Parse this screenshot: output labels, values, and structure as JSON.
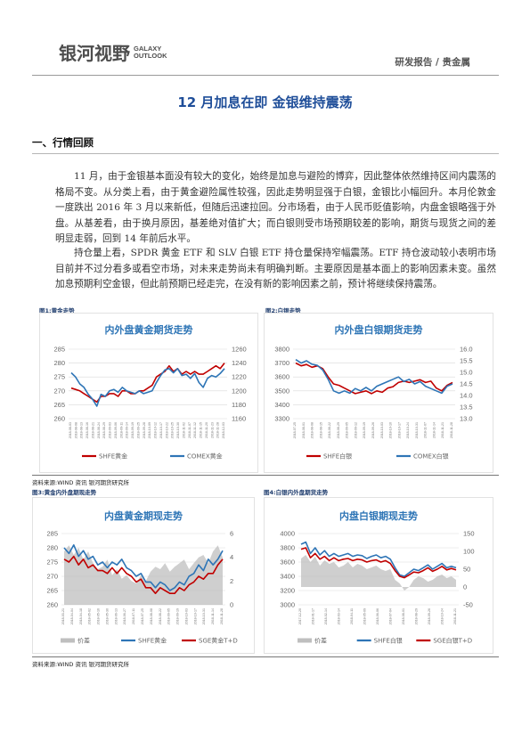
{
  "header": {
    "logo_cn": "银河视野",
    "logo_en_line1": "GALAXY",
    "logo_en_line2": "OUTLOOK",
    "category": "研发报告 / 贵金属"
  },
  "title": "12 月加息在即 金银维持震荡",
  "section": "一、行情回顾",
  "paragraphs": [
    "11 月，由于金银基本面没有较大的变化，始终是加息与避险的博弈，因此整体依然维持区间内震荡的格局不变。从分类上看，由于黄金避险属性较强，因此走势明显强于白银，金银比小幅回升。本月伦敦金一度跌出 2016 年 3 月以来新低，但随后迅速拉回。分市场看，由于人民币贬值影响，内盘金银略强于外盘。从基差看，由于换月原因，基差绝对值扩大；而白银则受市场预期较差的影响，期货与现货之间的差明显走弱，回到 14 年前后水平。",
    "持仓量上看，SPDR 黄金 ETF 和 SLV 白银 ETF 持仓量保持窄幅震荡。ETF 持仓波动较小表明市场目前并不过分看多或看空市场，对未来走势尚未有明确判断。主要原因是基本面上的影响因素未变。虽然加息预期利空金银，但此前预期已经走完，在没有新的影响因素之前，预计将继续保持震荡。"
  ],
  "source_text": "资料来源:WIND 资讯   银河期货研究所",
  "figures": [
    {
      "caption": "图1:黄金走势",
      "chart_data": {
        "type": "line",
        "title": "内外盘黄金期货走势",
        "y_left": {
          "ticks": [
            "285",
            "280",
            "275",
            "270",
            "265",
            "260"
          ],
          "lim": [
            260,
            285
          ]
        },
        "y_right": {
          "ticks": [
            "1260",
            "1240",
            "1220",
            "1200",
            "1180",
            "1160"
          ],
          "lim": [
            1160,
            1260
          ]
        },
        "x_ticks": [
          "2018-08-03",
          "2018-08-08",
          "2018-08-13",
          "2018-08-16",
          "2018-08-21",
          "2018-08-24",
          "2018-08-29",
          "2018-09-03",
          "2018-09-06",
          "2018-09-11",
          "2018-09-14",
          "2018-09-19",
          "2018-09-25",
          "2018-09-28",
          "2018-10-09",
          "2018-10-12",
          "2018-10-17",
          "2018-10-22",
          "2018-10-25",
          "2018-10-30",
          "2018-11-02",
          "2018-11-07",
          "2018-11-12",
          "2018-11-15",
          "2018-11-20",
          "2018-11-23",
          "2018-11-28",
          "2018-12-03"
        ],
        "series": [
          {
            "name": "SHFE黄金",
            "color": "#c00000",
            "axis": "left",
            "values": [
              271,
              270.5,
              270,
              269,
              268,
              267,
              266,
              268,
              268,
              269,
              269,
              268,
              270,
              270,
              269,
              269,
              270,
              270,
              271,
              272,
              275,
              276,
              277,
              279,
              277,
              278,
              276,
              277,
              276,
              277,
              276,
              276,
              277,
              278,
              279,
              278,
              280
            ]
          },
          {
            "name": "COMEX黄金",
            "color": "#2e75b6",
            "axis": "right",
            "values": [
              1226,
              1220,
              1210,
              1205,
              1195,
              1188,
              1178,
              1195,
              1192,
              1200,
              1202,
              1198,
              1205,
              1200,
              1198,
              1196,
              1200,
              1196,
              1198,
              1200,
              1212,
              1222,
              1230,
              1232,
              1226,
              1232,
              1222,
              1224,
              1218,
              1225,
              1212,
              1205,
              1218,
              1222,
              1220,
              1225,
              1232
            ]
          }
        ]
      }
    },
    {
      "caption": "图2:白银走势",
      "chart_data": {
        "type": "line",
        "title": "内外盘白银期货走势",
        "y_left": {
          "ticks": [
            "3800",
            "3700",
            "3600",
            "3500",
            "3400",
            "3300"
          ],
          "lim": [
            3300,
            3800
          ]
        },
        "y_right": {
          "ticks": [
            "16.0",
            "15.5",
            "15.0",
            "14.5",
            "14.0",
            "13.5",
            "13.0"
          ],
          "lim": [
            13.0,
            16.0
          ]
        },
        "x_ticks": [
          "2018-07-25",
          "2018-08-01",
          "2018-08-08",
          "2018-08-15",
          "2018-08-22",
          "2018-08-29",
          "2018-09-05",
          "2018-09-12",
          "2018-09-19",
          "2018-09-26",
          "2018-10-03",
          "2018-10-10",
          "2018-10-17",
          "2018-10-24",
          "2018-10-31",
          "2018-11-07",
          "2018-11-14",
          "2018-11-21",
          "2018-11-28"
        ],
        "series": [
          {
            "name": "SHFE白银",
            "color": "#c00000",
            "axis": "left",
            "values": [
              3700,
              3680,
              3690,
              3670,
              3680,
              3660,
              3600,
              3550,
              3540,
              3520,
              3500,
              3480,
              3490,
              3500,
              3480,
              3500,
              3490,
              3520,
              3530,
              3560,
              3570,
              3560,
              3570,
              3580,
              3560,
              3570,
              3520,
              3500,
              3540,
              3560
            ]
          },
          {
            "name": "COMEX白银",
            "color": "#2e75b6",
            "axis": "right",
            "values": [
              15.55,
              15.4,
              15.5,
              15.35,
              15.3,
              15.1,
              14.7,
              14.2,
              14.1,
              14.2,
              14.1,
              14.3,
              14.2,
              14.35,
              14.2,
              14.4,
              14.5,
              14.6,
              14.7,
              14.8,
              14.6,
              14.7,
              14.5,
              14.6,
              14.4,
              14.3,
              14.2,
              14.1,
              14.4,
              14.5
            ]
          }
        ]
      }
    },
    {
      "caption": "图3:黄金内外盘期现走势",
      "chart_data": {
        "type": "line",
        "title": "内盘黄金期现走势",
        "y_left": {
          "ticks": [
            "285",
            "280",
            "275",
            "270",
            "265",
            "260"
          ],
          "lim": [
            260,
            285
          ]
        },
        "y_right": {
          "ticks": [
            "6",
            "4",
            "2",
            "0"
          ],
          "lim": [
            0,
            6
          ]
        },
        "x_ticks": [
          "2018-03-21",
          "2018-04-04",
          "2018-04-18",
          "2018-05-02",
          "2018-05-16",
          "2018-05-30",
          "2018-06-13",
          "2018-06-27",
          "2018-07-11",
          "2018-07-25",
          "2018-08-08",
          "2018-08-22",
          "2018-09-05",
          "2018-09-19",
          "2018-10-03",
          "2018-10-17",
          "2018-10-31",
          "2018-11-14",
          "2018-11-28"
        ],
        "series": [
          {
            "name": "价差",
            "color": "#bfbfbf",
            "axis": "right",
            "values": [
              4.5,
              5.0,
              4.2,
              4.8,
              3.8,
              4.5,
              3.5,
              3.0,
              3.2,
              3.8,
              2.5,
              3.0,
              2.2,
              2.5,
              2.0,
              1.8,
              2.5,
              2.0,
              2.8,
              3.2,
              3.0,
              3.5,
              2.8,
              3.2,
              3.5,
              3.8,
              3.0,
              3.5,
              4.0,
              4.2,
              3.5,
              4.5,
              5.0,
              4.0
            ]
          },
          {
            "name": "SHFE黄金",
            "color": "#2e75b6",
            "axis": "left",
            "values": [
              280,
              278,
              281,
              277,
              279,
              276,
              277,
              274,
              275,
              273,
              275,
              274,
              276,
              273,
              272,
              270,
              271,
              268,
              268,
              266,
              268,
              267,
              265,
              266,
              268,
              267,
              270,
              271,
              274,
              272,
              276,
              274,
              276,
              279
            ]
          },
          {
            "name": "SGE黄金T+D",
            "color": "#c00000",
            "axis": "left",
            "values": [
              276,
              275,
              277,
              274,
              276,
              273,
              274,
              272,
              272,
              271,
              273,
              271,
              273,
              271,
              270,
              268,
              269,
              266,
              266,
              264,
              266,
              265,
              264,
              264,
              266,
              265,
              267,
              268,
              270,
              269,
              271,
              271,
              274,
              276
            ]
          }
        ]
      }
    },
    {
      "caption": "图4:白银内外盘期货走势",
      "chart_data": {
        "type": "line",
        "title": "内盘白银期现走势",
        "y_left": {
          "ticks": [
            "4000",
            "3800",
            "3600",
            "3400",
            "3200",
            "3000"
          ],
          "lim": [
            3000,
            4000
          ]
        },
        "y_right": {
          "ticks": [
            "150",
            "100",
            "50",
            "0",
            "-50"
          ],
          "lim": [
            -50,
            150
          ]
        },
        "x_ticks": [
          "2017-12-20",
          "2018-01-17",
          "2018-02-14",
          "2018-03-14",
          "2018-04-11",
          "2018-05-09",
          "2018-06-06",
          "2018-07-04",
          "2018-08-01",
          "2018-08-29",
          "2018-09-26",
          "2018-10-24",
          "2018-11-21"
        ],
        "series": [
          {
            "name": "价差",
            "color": "#bfbfbf",
            "axis": "right",
            "values": [
              80,
              90,
              70,
              85,
              60,
              75,
              65,
              70,
              55,
              60,
              70,
              55,
              65,
              60,
              50,
              55,
              60,
              50,
              45,
              50,
              20,
              10,
              -10,
              0,
              20,
              30,
              25,
              15,
              20,
              30,
              35,
              25,
              30,
              20
            ]
          },
          {
            "name": "SHFE白银",
            "color": "#2e75b6",
            "axis": "left",
            "values": [
              3850,
              3880,
              3720,
              3800,
              3700,
              3760,
              3680,
              3720,
              3680,
              3700,
              3720,
              3680,
              3700,
              3690,
              3650,
              3680,
              3700,
              3660,
              3680,
              3640,
              3520,
              3420,
              3400,
              3450,
              3500,
              3480,
              3520,
              3560,
              3500,
              3540,
              3580,
              3520,
              3540,
              3520
            ]
          },
          {
            "name": "SGE白银T+D",
            "color": "#c00000",
            "axis": "left",
            "values": [
              3780,
              3800,
              3660,
              3720,
              3640,
              3680,
              3620,
              3660,
              3620,
              3640,
              3650,
              3620,
              3640,
              3630,
              3600,
              3620,
              3630,
              3600,
              3620,
              3580,
              3480,
              3400,
              3380,
              3420,
              3460,
              3450,
              3480,
              3520,
              3470,
              3500,
              3540,
              3490,
              3510,
              3490
            ]
          }
        ]
      }
    }
  ]
}
